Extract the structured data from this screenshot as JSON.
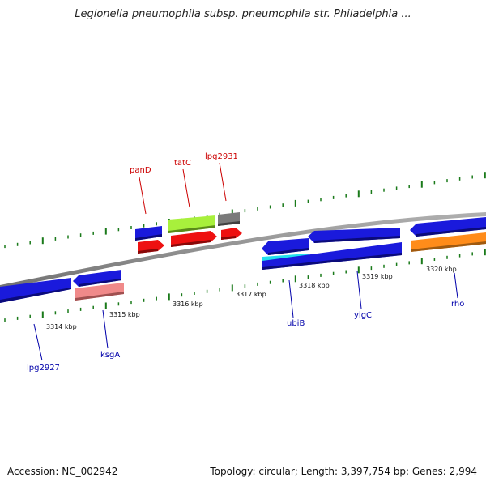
{
  "title": "Legionella pneumophila subsp. pneumophila str. Philadelphia ...",
  "footer": {
    "accession": "Accession: NC_002942",
    "summary": "Topology: circular; Length: 3,397,754 bp; Genes: 2,994"
  },
  "colors": {
    "forward_label": "#cc0000",
    "reverse_label": "#0000aa",
    "backbone": "#808080",
    "ticks": "#1a7a1a"
  },
  "scale_labels": [
    "3314 kbp",
    "3315 kbp",
    "3316 kbp",
    "3317 kbp",
    "3318 kbp",
    "3319 kbp",
    "3320 kbp"
  ],
  "genes": [
    {
      "name": "lpg2927",
      "strand": "reverse",
      "color": "#1a1adc"
    },
    {
      "name": "ksgA",
      "strand": "reverse",
      "color": "#1a1adc"
    },
    {
      "name": "panD",
      "strand": "forward",
      "color": "#1a1adc"
    },
    {
      "name": "tatC",
      "strand": "forward",
      "color": "#a8f03c"
    },
    {
      "name": "lpg2931",
      "strand": "forward",
      "color": "#808080"
    },
    {
      "name": "ubiB",
      "strand": "reverse",
      "color": "#1a1adc"
    },
    {
      "name": "yigC",
      "strand": "reverse",
      "color": "#1a1adc"
    },
    {
      "name": "rho",
      "strand": "reverse",
      "color": "#1a1adc"
    }
  ]
}
